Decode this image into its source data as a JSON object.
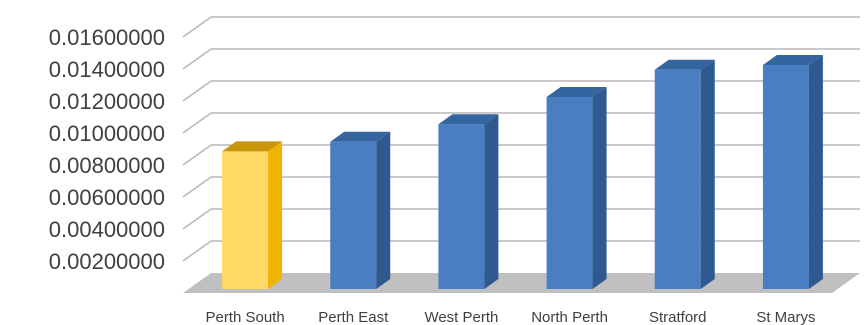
{
  "chart_data": {
    "type": "bar",
    "style": "3d-column",
    "categories": [
      "Perth South",
      "Perth East",
      "West Perth",
      "North Perth",
      "Stratford",
      "St Marys"
    ],
    "values": [
      0.0086,
      0.0092,
      0.0103,
      0.012,
      0.0137,
      0.014
    ],
    "highlight_index": 0,
    "ylim": [
      0,
      0.016
    ],
    "yticks": [
      0.002,
      0.004,
      0.006,
      0.008,
      0.01,
      0.012,
      0.014,
      0.016
    ],
    "ytick_labels": [
      "0.00200000",
      "0.00400000",
      "0.00600000",
      "0.00800000",
      "0.01000000",
      "0.01200000",
      "0.01400000",
      "0.01600000"
    ],
    "grid": true,
    "legend": "none",
    "title": "",
    "xlabel": "",
    "ylabel": "",
    "colors": {
      "bar_front": "#4a7ec2",
      "bar_side": "#2f5a8f",
      "bar_top": "#35659f",
      "highlight_front": "#ffd966",
      "highlight_side": "#f0b400",
      "highlight_top": "#c9960a",
      "floor": "#c0c0c0",
      "grid": "#b7b7b7",
      "text": "#404040"
    }
  }
}
